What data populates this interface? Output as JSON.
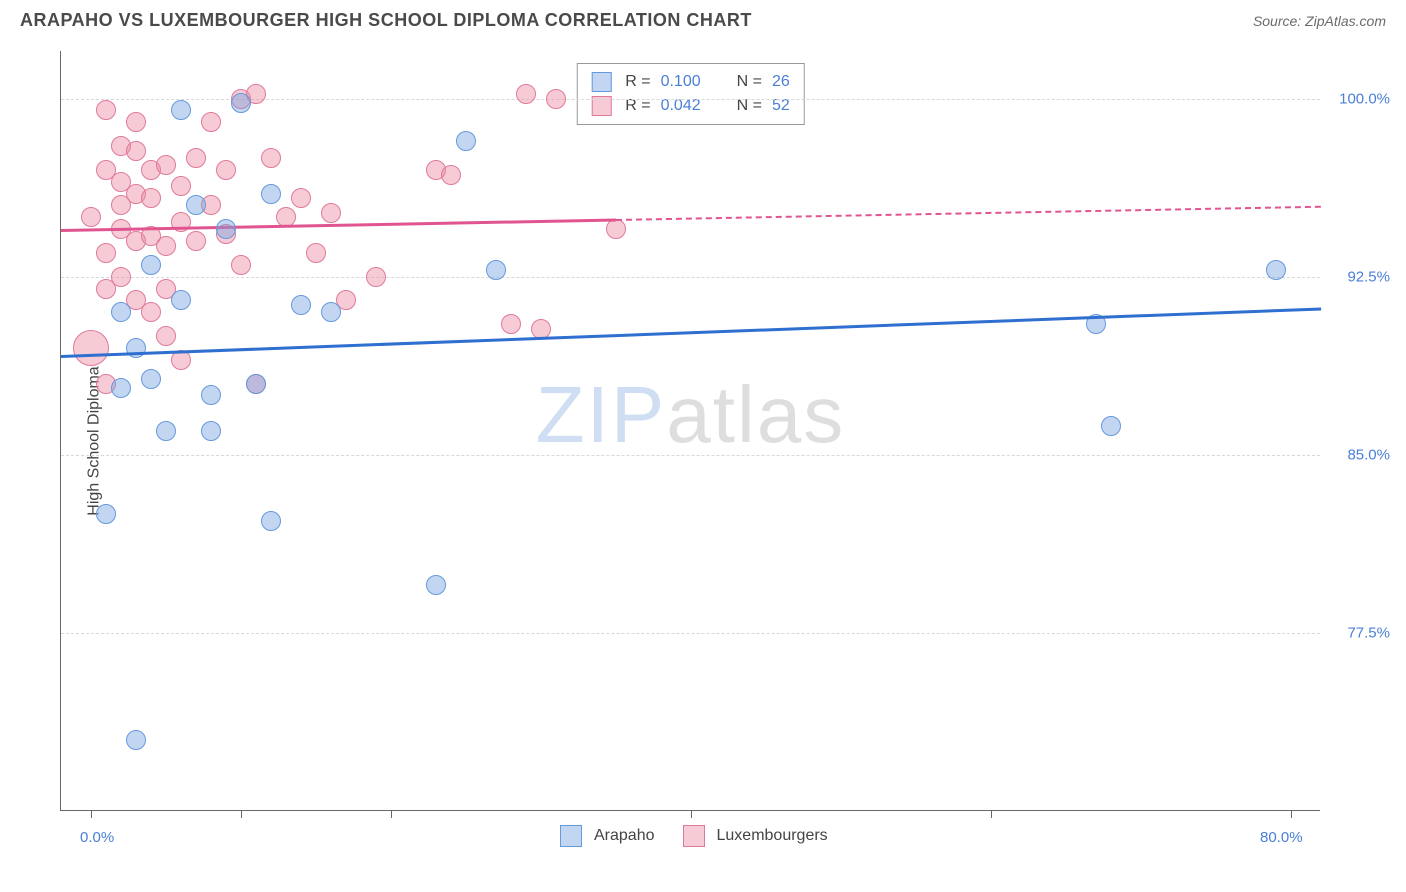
{
  "title": "ARAPAHO VS LUXEMBOURGER HIGH SCHOOL DIPLOMA CORRELATION CHART",
  "source_label": "Source: ZipAtlas.com",
  "watermark": {
    "part1": "ZIP",
    "part2": "atlas"
  },
  "y_axis": {
    "label": "High School Diploma",
    "min": 70.0,
    "max": 102.0,
    "ticks": [
      77.5,
      85.0,
      92.5,
      100.0
    ],
    "tick_labels": [
      "77.5%",
      "85.0%",
      "92.5%",
      "100.0%"
    ],
    "label_color": "#4a7fd6"
  },
  "x_axis": {
    "min": -2.0,
    "max": 82.0,
    "tick_positions": [
      0,
      10,
      20,
      40,
      60,
      80
    ],
    "end_labels": {
      "left": "0.0%",
      "right": "80.0%"
    },
    "label_color": "#4a7fd6"
  },
  "series": {
    "arapaho": {
      "label": "Arapaho",
      "fill": "rgba(120,165,225,0.45)",
      "stroke": "#6699dd",
      "marker_radius": 10,
      "trend": {
        "y_at_xmin": 89.2,
        "y_at_xmax": 91.2,
        "solid_until_x": 82.0,
        "color": "#2f6fd0"
      },
      "R": "0.100",
      "N": "26",
      "points": [
        {
          "x": 2,
          "y": 87.8
        },
        {
          "x": 4,
          "y": 88.2
        },
        {
          "x": 6,
          "y": 99.5
        },
        {
          "x": 10,
          "y": 99.8
        },
        {
          "x": 3,
          "y": 89.5
        },
        {
          "x": 7,
          "y": 95.5
        },
        {
          "x": 12,
          "y": 96.0
        },
        {
          "x": 14,
          "y": 91.3
        },
        {
          "x": 16,
          "y": 91.0
        },
        {
          "x": 11,
          "y": 88.0
        },
        {
          "x": 1,
          "y": 82.5
        },
        {
          "x": 12,
          "y": 82.2
        },
        {
          "x": 5,
          "y": 86.0
        },
        {
          "x": 8,
          "y": 86.0
        },
        {
          "x": 3,
          "y": 73.0
        },
        {
          "x": 23,
          "y": 79.5
        },
        {
          "x": 27,
          "y": 92.8
        },
        {
          "x": 25,
          "y": 98.2
        },
        {
          "x": 67,
          "y": 90.5
        },
        {
          "x": 68,
          "y": 86.2
        },
        {
          "x": 79,
          "y": 92.8
        },
        {
          "x": 4,
          "y": 93.0
        },
        {
          "x": 2,
          "y": 91.0
        },
        {
          "x": 6,
          "y": 91.5
        },
        {
          "x": 9,
          "y": 94.5
        },
        {
          "x": 8,
          "y": 87.5
        }
      ]
    },
    "luxembourgers": {
      "label": "Luxembourgers",
      "fill": "rgba(235,140,165,0.45)",
      "stroke": "#e07a9a",
      "marker_radius": 10,
      "trend": {
        "y_at_xmin": 94.5,
        "y_at_xmax": 95.5,
        "solid_until_x": 35.0,
        "color": "#e05590"
      },
      "R": "0.042",
      "N": "52",
      "points": [
        {
          "x": 1,
          "y": 99.5
        },
        {
          "x": 2,
          "y": 98.0
        },
        {
          "x": 3,
          "y": 99.0
        },
        {
          "x": 4,
          "y": 97.0
        },
        {
          "x": 1,
          "y": 97.0
        },
        {
          "x": 2,
          "y": 96.5
        },
        {
          "x": 3,
          "y": 96.0
        },
        {
          "x": 4,
          "y": 95.8
        },
        {
          "x": 5,
          "y": 97.2
        },
        {
          "x": 6,
          "y": 96.3
        },
        {
          "x": 7,
          "y": 97.5
        },
        {
          "x": 8,
          "y": 99.0
        },
        {
          "x": 9,
          "y": 97.0
        },
        {
          "x": 10,
          "y": 100.0
        },
        {
          "x": 11,
          "y": 100.2
        },
        {
          "x": 12,
          "y": 97.5
        },
        {
          "x": 2,
          "y": 94.5
        },
        {
          "x": 3,
          "y": 94.0
        },
        {
          "x": 4,
          "y": 94.2
        },
        {
          "x": 5,
          "y": 93.8
        },
        {
          "x": 6,
          "y": 94.8
        },
        {
          "x": 7,
          "y": 94.0
        },
        {
          "x": 8,
          "y": 95.5
        },
        {
          "x": 9,
          "y": 94.3
        },
        {
          "x": 0,
          "y": 89.5,
          "r": 18
        },
        {
          "x": 1,
          "y": 92.0
        },
        {
          "x": 2,
          "y": 92.5
        },
        {
          "x": 3,
          "y": 91.5
        },
        {
          "x": 1,
          "y": 88.0
        },
        {
          "x": 4,
          "y": 91.0
        },
        {
          "x": 5,
          "y": 92.0
        },
        {
          "x": 6,
          "y": 89.0
        },
        {
          "x": 13,
          "y": 95.0
        },
        {
          "x": 14,
          "y": 95.8
        },
        {
          "x": 15,
          "y": 93.5
        },
        {
          "x": 16,
          "y": 95.2
        },
        {
          "x": 10,
          "y": 93.0
        },
        {
          "x": 11,
          "y": 88.0
        },
        {
          "x": 17,
          "y": 91.5
        },
        {
          "x": 19,
          "y": 92.5
        },
        {
          "x": 23,
          "y": 97.0
        },
        {
          "x": 24,
          "y": 96.8
        },
        {
          "x": 29,
          "y": 100.2
        },
        {
          "x": 31,
          "y": 100.0
        },
        {
          "x": 28,
          "y": 90.5
        },
        {
          "x": 30,
          "y": 90.3
        },
        {
          "x": 35,
          "y": 94.5
        },
        {
          "x": 2,
          "y": 95.5
        },
        {
          "x": 3,
          "y": 97.8
        },
        {
          "x": 0,
          "y": 95.0
        },
        {
          "x": 1,
          "y": 93.5
        },
        {
          "x": 5,
          "y": 90.0
        }
      ]
    }
  },
  "legend_top": {
    "rows": [
      {
        "swatch_fill": "rgba(120,165,225,0.45)",
        "swatch_stroke": "#6699dd",
        "r_label": "R  =",
        "r_val": "0.100",
        "n_label": "N  =",
        "n_val": "26"
      },
      {
        "swatch_fill": "rgba(235,140,165,0.45)",
        "swatch_stroke": "#e07a9a",
        "r_label": "R  =",
        "r_val": "0.042",
        "n_label": "N  =",
        "n_val": "52"
      }
    ]
  },
  "legend_bottom": [
    {
      "swatch_fill": "rgba(120,165,225,0.45)",
      "swatch_stroke": "#6699dd",
      "label": "Arapaho"
    },
    {
      "swatch_fill": "rgba(235,140,165,0.45)",
      "swatch_stroke": "#e07a9a",
      "label": "Luxembourgers"
    }
  ]
}
